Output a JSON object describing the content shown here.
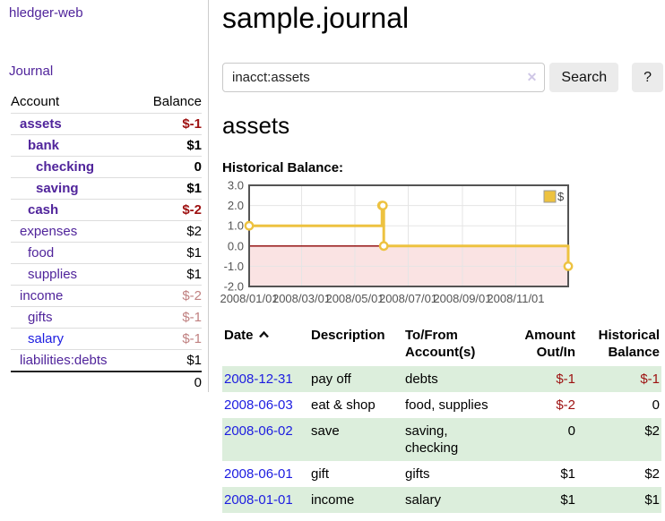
{
  "app": {
    "brand": "hledger-web",
    "nav_journal": "Journal"
  },
  "colors": {
    "link_purple": "#50249b",
    "link_blue": "#1c1ce0",
    "negative": "#9d1010",
    "negative_soft": "#c08181",
    "row_stripe_green": "#dceedc"
  },
  "sidebar": {
    "headers": [
      "Account",
      "Balance"
    ],
    "rows": [
      {
        "account": "assets",
        "balance": "$-1",
        "depth": 1,
        "bold": true,
        "neg": "strong"
      },
      {
        "account": "bank",
        "balance": "$1",
        "depth": 2,
        "bold": true,
        "neg": ""
      },
      {
        "account": "checking",
        "balance": "0",
        "depth": 3,
        "bold": true,
        "neg": ""
      },
      {
        "account": "saving",
        "balance": "$1",
        "depth": 3,
        "bold": true,
        "neg": ""
      },
      {
        "account": "cash",
        "balance": "$-2",
        "depth": 2,
        "bold": true,
        "neg": "strong"
      },
      {
        "account": "expenses",
        "balance": "$2",
        "depth": 1,
        "bold": false,
        "neg": ""
      },
      {
        "account": "food",
        "balance": "$1",
        "depth": 2,
        "bold": false,
        "neg": ""
      },
      {
        "account": "supplies",
        "balance": "$1",
        "depth": 2,
        "bold": false,
        "neg": ""
      },
      {
        "account": "income",
        "balance": "$-2",
        "depth": 1,
        "bold": false,
        "neg": "soft"
      },
      {
        "account": "gifts",
        "balance": "$-1",
        "depth": 2,
        "bold": false,
        "neg": "soft"
      },
      {
        "account": "salary",
        "balance": "$-1",
        "depth": 2,
        "bold": false,
        "neg": "soft",
        "link": "blue"
      },
      {
        "account": "liabilities:debts",
        "balance": "$1",
        "depth": 1,
        "bold": false,
        "neg": ""
      }
    ],
    "total": "0"
  },
  "main": {
    "title": "sample.journal",
    "search": {
      "value": "inacct:assets",
      "clear_icon": "✕",
      "button_label": "Search",
      "help_label": "?"
    },
    "account_heading": "assets",
    "chart_label": "Historical Balance:"
  },
  "chart_data": {
    "type": "line",
    "title": "Historical Balance:",
    "step": true,
    "x_range": [
      "2008-01-01",
      "2008-12-31"
    ],
    "ylim": [
      -2,
      3
    ],
    "y_tick_values": [
      3,
      2,
      1,
      0,
      -1,
      -2
    ],
    "y_tick_labels": [
      "3.0",
      "2.0",
      "1.0",
      "0.0",
      "-1.0",
      "-2.0"
    ],
    "x_tick_dates": [
      "2008-01-01",
      "2008-03-01",
      "2008-05-01",
      "2008-07-01",
      "2008-09-01",
      "2008-11-01"
    ],
    "x_tick_labels": [
      "2008/01/01",
      "2008/03/01",
      "2008/05/01",
      "2008/07/01",
      "2008/09/01",
      "2008/11/01"
    ],
    "series": [
      {
        "name": "$",
        "color": "#EDC240",
        "points": [
          {
            "date": "2008-01-01",
            "value": 1
          },
          {
            "date": "2008-06-01",
            "value": 2
          },
          {
            "date": "2008-06-02",
            "value": 2
          },
          {
            "date": "2008-06-03",
            "value": 0
          },
          {
            "date": "2008-12-31",
            "value": -1
          }
        ]
      }
    ],
    "legend_position": "top-right",
    "grid_on": true,
    "grid_color": "#e5e5e5",
    "border_color": "#545454",
    "zero_line_color": "#8b0000",
    "negative_region_color": "#fae3e3",
    "tick_color": "#545454"
  },
  "register": {
    "headers": [
      "Date",
      "Description",
      "To/From Account(s)",
      "Amount Out/In",
      "Historical Balance"
    ],
    "rows": [
      {
        "date": "2008-12-31",
        "description": "pay off",
        "accounts": "debts",
        "amount": "$-1",
        "balance": "$-1",
        "amount_neg": true,
        "balance_neg": true
      },
      {
        "date": "2008-06-03",
        "description": "eat & shop",
        "accounts": "food, supplies",
        "amount": "$-2",
        "balance": "0",
        "amount_neg": true,
        "balance_neg": false
      },
      {
        "date": "2008-06-02",
        "description": "save",
        "accounts": "saving, checking",
        "amount": "0",
        "balance": "$2",
        "amount_neg": false,
        "balance_neg": false
      },
      {
        "date": "2008-06-01",
        "description": "gift",
        "accounts": "gifts",
        "amount": "$1",
        "balance": "$2",
        "amount_neg": false,
        "balance_neg": false
      },
      {
        "date": "2008-01-01",
        "description": "income",
        "accounts": "salary",
        "amount": "$1",
        "balance": "$1",
        "amount_neg": false,
        "balance_neg": false
      }
    ]
  }
}
